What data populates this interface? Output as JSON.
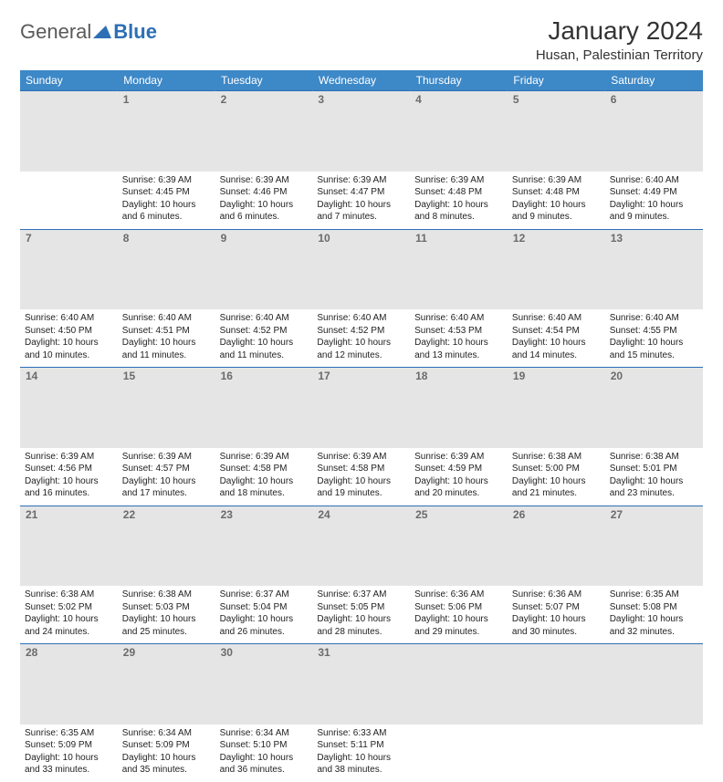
{
  "brand": {
    "part1": "General",
    "part2": "Blue"
  },
  "title": "January 2024",
  "location": "Husan, Palestinian Territory",
  "colors": {
    "header_bg": "#3d88c7",
    "header_text": "#ffffff",
    "daynum_bg": "#e5e5e5",
    "daynum_text": "#6b6b6b",
    "border": "#2d6fb5",
    "logo_blue": "#2d6fb5",
    "logo_gray": "#5a5a5a"
  },
  "day_headers": [
    "Sunday",
    "Monday",
    "Tuesday",
    "Wednesday",
    "Thursday",
    "Friday",
    "Saturday"
  ],
  "weeks": [
    [
      null,
      {
        "n": "1",
        "sr": "6:39 AM",
        "ss": "4:45 PM",
        "dl": "10 hours and 6 minutes."
      },
      {
        "n": "2",
        "sr": "6:39 AM",
        "ss": "4:46 PM",
        "dl": "10 hours and 6 minutes."
      },
      {
        "n": "3",
        "sr": "6:39 AM",
        "ss": "4:47 PM",
        "dl": "10 hours and 7 minutes."
      },
      {
        "n": "4",
        "sr": "6:39 AM",
        "ss": "4:48 PM",
        "dl": "10 hours and 8 minutes."
      },
      {
        "n": "5",
        "sr": "6:39 AM",
        "ss": "4:48 PM",
        "dl": "10 hours and 9 minutes."
      },
      {
        "n": "6",
        "sr": "6:40 AM",
        "ss": "4:49 PM",
        "dl": "10 hours and 9 minutes."
      }
    ],
    [
      {
        "n": "7",
        "sr": "6:40 AM",
        "ss": "4:50 PM",
        "dl": "10 hours and 10 minutes."
      },
      {
        "n": "8",
        "sr": "6:40 AM",
        "ss": "4:51 PM",
        "dl": "10 hours and 11 minutes."
      },
      {
        "n": "9",
        "sr": "6:40 AM",
        "ss": "4:52 PM",
        "dl": "10 hours and 11 minutes."
      },
      {
        "n": "10",
        "sr": "6:40 AM",
        "ss": "4:52 PM",
        "dl": "10 hours and 12 minutes."
      },
      {
        "n": "11",
        "sr": "6:40 AM",
        "ss": "4:53 PM",
        "dl": "10 hours and 13 minutes."
      },
      {
        "n": "12",
        "sr": "6:40 AM",
        "ss": "4:54 PM",
        "dl": "10 hours and 14 minutes."
      },
      {
        "n": "13",
        "sr": "6:40 AM",
        "ss": "4:55 PM",
        "dl": "10 hours and 15 minutes."
      }
    ],
    [
      {
        "n": "14",
        "sr": "6:39 AM",
        "ss": "4:56 PM",
        "dl": "10 hours and 16 minutes."
      },
      {
        "n": "15",
        "sr": "6:39 AM",
        "ss": "4:57 PM",
        "dl": "10 hours and 17 minutes."
      },
      {
        "n": "16",
        "sr": "6:39 AM",
        "ss": "4:58 PM",
        "dl": "10 hours and 18 minutes."
      },
      {
        "n": "17",
        "sr": "6:39 AM",
        "ss": "4:58 PM",
        "dl": "10 hours and 19 minutes."
      },
      {
        "n": "18",
        "sr": "6:39 AM",
        "ss": "4:59 PM",
        "dl": "10 hours and 20 minutes."
      },
      {
        "n": "19",
        "sr": "6:38 AM",
        "ss": "5:00 PM",
        "dl": "10 hours and 21 minutes."
      },
      {
        "n": "20",
        "sr": "6:38 AM",
        "ss": "5:01 PM",
        "dl": "10 hours and 23 minutes."
      }
    ],
    [
      {
        "n": "21",
        "sr": "6:38 AM",
        "ss": "5:02 PM",
        "dl": "10 hours and 24 minutes."
      },
      {
        "n": "22",
        "sr": "6:38 AM",
        "ss": "5:03 PM",
        "dl": "10 hours and 25 minutes."
      },
      {
        "n": "23",
        "sr": "6:37 AM",
        "ss": "5:04 PM",
        "dl": "10 hours and 26 minutes."
      },
      {
        "n": "24",
        "sr": "6:37 AM",
        "ss": "5:05 PM",
        "dl": "10 hours and 28 minutes."
      },
      {
        "n": "25",
        "sr": "6:36 AM",
        "ss": "5:06 PM",
        "dl": "10 hours and 29 minutes."
      },
      {
        "n": "26",
        "sr": "6:36 AM",
        "ss": "5:07 PM",
        "dl": "10 hours and 30 minutes."
      },
      {
        "n": "27",
        "sr": "6:35 AM",
        "ss": "5:08 PM",
        "dl": "10 hours and 32 minutes."
      }
    ],
    [
      {
        "n": "28",
        "sr": "6:35 AM",
        "ss": "5:09 PM",
        "dl": "10 hours and 33 minutes."
      },
      {
        "n": "29",
        "sr": "6:34 AM",
        "ss": "5:09 PM",
        "dl": "10 hours and 35 minutes."
      },
      {
        "n": "30",
        "sr": "6:34 AM",
        "ss": "5:10 PM",
        "dl": "10 hours and 36 minutes."
      },
      {
        "n": "31",
        "sr": "6:33 AM",
        "ss": "5:11 PM",
        "dl": "10 hours and 38 minutes."
      },
      null,
      null,
      null
    ]
  ],
  "labels": {
    "sunrise": "Sunrise:",
    "sunset": "Sunset:",
    "daylight": "Daylight:"
  }
}
